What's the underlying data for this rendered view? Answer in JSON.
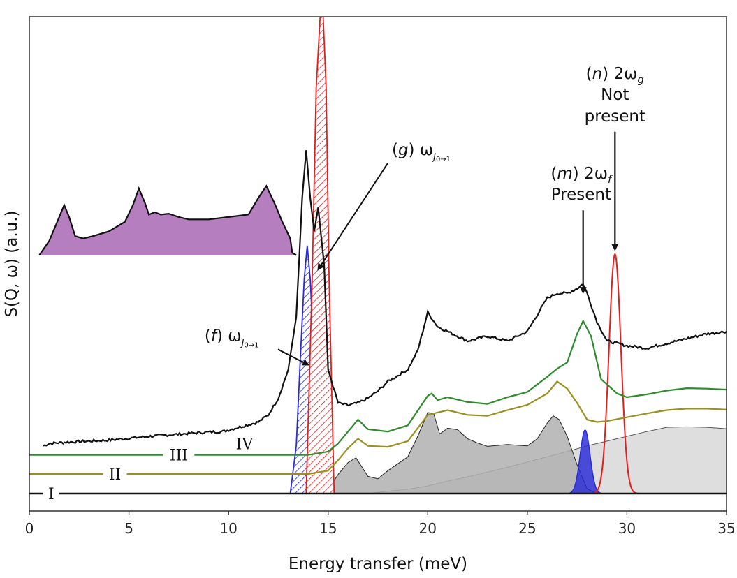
{
  "chart_data": {
    "type": "line",
    "xlabel": "Energy transfer (meV)",
    "ylabel": "S(Q, ω) (a.u.)",
    "xlim": [
      0,
      35
    ],
    "ylim": [
      0,
      100
    ],
    "xticks": [
      0,
      5,
      10,
      15,
      20,
      25,
      30,
      35
    ],
    "grid": false,
    "colors": {
      "black": "#111111",
      "green": "#2e8b2e",
      "olive": "#9a9020",
      "grey_dark": "#b0b0b0",
      "grey_light": "#dedede",
      "purple": "#b57fbf",
      "blue": "#2a2ad8",
      "red": "#e02020"
    },
    "series": [
      {
        "name": "IV",
        "label": "IV",
        "color": "#111111",
        "baseline": 10,
        "x": [
          0.7,
          1,
          2,
          3,
          4,
          5,
          6,
          7,
          8,
          9,
          9.7,
          11.5,
          12,
          12.5,
          13,
          13.4,
          13.7,
          13.9,
          14.1,
          14.3,
          14.5,
          14.8,
          15,
          15.5,
          16,
          16.5,
          17,
          17.5,
          18,
          19,
          19.5,
          20,
          20.5,
          21,
          22,
          23,
          24,
          25,
          26,
          26.5,
          27,
          27.5,
          27.8,
          28,
          28.5,
          29,
          30,
          31,
          32,
          33,
          34,
          35
        ],
        "y": [
          10,
          10.5,
          10.8,
          11,
          11.2,
          11.6,
          12,
          12.3,
          12.6,
          12.9,
          13,
          15,
          16.5,
          20,
          26,
          37,
          62,
          72,
          62,
          55,
          60,
          48,
          26,
          19,
          18.5,
          19,
          20,
          21.5,
          23.5,
          26,
          30,
          38,
          35,
          34,
          32,
          33,
          32,
          34,
          41,
          42,
          42,
          43,
          44,
          42,
          36,
          32,
          31,
          30.5,
          31.5,
          32.5,
          33.5,
          34
        ]
      },
      {
        "name": "III",
        "label": "III",
        "color": "#2e8b2e",
        "baseline": 8.1,
        "x": [
          0,
          14,
          15,
          15.5,
          16,
          16.5,
          17,
          18,
          19,
          20,
          20.2,
          20.5,
          21,
          22,
          23,
          24,
          25,
          26,
          26.5,
          27,
          27.5,
          27.8,
          28.2,
          28.7,
          29.5,
          30,
          31,
          32,
          33,
          34,
          35
        ],
        "y": [
          8.1,
          8.1,
          8.8,
          10.5,
          13,
          15.5,
          13.5,
          13,
          14.3,
          20.5,
          21,
          19.6,
          20.2,
          19.2,
          18.8,
          20.2,
          21.3,
          24.5,
          26.2,
          27.5,
          33.5,
          36.2,
          33,
          24,
          21,
          20.2,
          20.8,
          21.6,
          22.1,
          22,
          21.8
        ]
      },
      {
        "name": "II",
        "label": "II",
        "color": "#9a9020",
        "baseline": 4.1,
        "x": [
          0,
          14,
          15,
          15.5,
          16,
          16.5,
          17,
          18,
          19,
          20,
          20.5,
          21,
          22,
          23,
          24,
          25,
          26,
          26.5,
          27,
          27.5,
          28,
          28.5,
          29,
          30,
          31,
          32,
          33,
          34,
          35
        ],
        "y": [
          4.1,
          4.1,
          4.8,
          7,
          9.5,
          11.5,
          10,
          9.8,
          11,
          16.5,
          17,
          17.5,
          16.5,
          16.3,
          17.5,
          18.6,
          21,
          23.5,
          22,
          19,
          15.5,
          15,
          15.2,
          16,
          16.8,
          17.5,
          17.8,
          17.8,
          17.6
        ]
      },
      {
        "name": "I",
        "label": "I",
        "color": "#111111",
        "baseline": 0,
        "x": [
          0,
          35
        ],
        "y": [
          0,
          0
        ]
      },
      {
        "name": "grey-dark",
        "color": "#b0b0b0",
        "fill": true,
        "x": [
          14.7,
          15,
          15.5,
          16,
          16.4,
          17,
          17.5,
          18,
          19,
          19.5,
          20,
          20.3,
          20.6,
          21,
          21.5,
          22,
          22.5,
          23,
          24,
          25,
          25.5,
          26,
          26.3,
          26.6,
          27,
          27.5,
          28,
          28.5
        ],
        "y": [
          0,
          0.8,
          4,
          6.5,
          7.5,
          3.6,
          3.1,
          4.8,
          7.7,
          12,
          17,
          16.8,
          12.5,
          13.7,
          13.4,
          11.5,
          10.6,
          9.9,
          10.3,
          10,
          11.5,
          14.8,
          16.3,
          15.5,
          12,
          6,
          1,
          0
        ]
      },
      {
        "name": "grey-light",
        "color": "#dedede",
        "fill": true,
        "x": [
          17,
          18,
          19,
          20,
          21,
          22,
          23,
          24,
          25,
          26,
          27,
          28,
          29,
          30,
          31,
          32,
          33,
          34,
          35
        ],
        "y": [
          0,
          0.5,
          0.9,
          1.6,
          2.6,
          3.5,
          4.5,
          5.5,
          6.6,
          7.7,
          8.8,
          10,
          11,
          12,
          13,
          13.9,
          14,
          13.9,
          13.6
        ]
      },
      {
        "name": "purple-inset",
        "color": "#b57fbf",
        "fill": true,
        "x": [
          0.5,
          1,
          1.5,
          1.75,
          2,
          2.3,
          2.7,
          3.2,
          4,
          4.8,
          5.2,
          5.5,
          5.8,
          6,
          6.3,
          6.6,
          7,
          7.5,
          8,
          9,
          10,
          11,
          11.5,
          11.9,
          12.3,
          12.7,
          13.1,
          13.2,
          13.4
        ],
        "y": [
          50,
          53,
          58,
          60.5,
          58,
          54,
          53.5,
          54,
          55,
          57,
          60.5,
          64,
          61,
          58.5,
          59,
          58.5,
          58.7,
          58,
          57.5,
          57.5,
          58,
          58.5,
          62,
          64.5,
          61,
          57,
          53.5,
          50.5,
          50
        ]
      },
      {
        "name": "blue-hatched",
        "color": "#2a2ad8",
        "hatched": true,
        "x": [
          13.1,
          13.4,
          13.6,
          13.8,
          13.95,
          14.1,
          14.3,
          14.5,
          14.7
        ],
        "y": [
          0,
          10,
          28,
          45,
          52,
          45,
          28,
          8,
          0
        ]
      },
      {
        "name": "red-hatched",
        "color": "#e02020",
        "hatched": true,
        "x": [
          13.9,
          14.2,
          14.4,
          14.6,
          14.75,
          14.9,
          15.05,
          15.3
        ],
        "y": [
          0,
          45,
          85,
          100,
          100,
          85,
          45,
          0
        ]
      },
      {
        "name": "blue-2wf",
        "color": "#2a2ad8",
        "fill": true,
        "gaussian": [
          27.9,
          0.25,
          13.3
        ]
      },
      {
        "name": "red-2wg",
        "color": "#e02020",
        "gaussian": [
          29.4,
          0.3,
          50.2
        ]
      }
    ],
    "annotations": [
      {
        "id": "f",
        "prefix": "(",
        "letter": "f",
        "suffix": ") ω",
        "subscript": "J",
        "subsub": "0→1",
        "text_x": 8.8,
        "text_y": 32,
        "arrow_to_x": 14.0,
        "arrow_to_y": 27
      },
      {
        "id": "g",
        "prefix": "(",
        "letter": "g",
        "suffix": ") ω",
        "subscript": "J",
        "subsub": "0→1",
        "text_x": 18.2,
        "text_y": 71,
        "arrow_to_x": 14.5,
        "arrow_to_y": 47
      },
      {
        "id": "m",
        "line1_prefix": "(",
        "line1_letter": "m",
        "line1_suffix": ") 2ω",
        "line1_sub": "f",
        "line2": "Present",
        "text_x": 27.7,
        "text_y": 66,
        "arrow_to_x": 27.8,
        "arrow_to_y": 42
      },
      {
        "id": "n",
        "line1_prefix": "(",
        "line1_letter": "n",
        "line1_suffix": ") 2ω",
        "line1_sub": "g",
        "line2": "Not",
        "line3": "present",
        "text_x": 29.4,
        "text_y": 87,
        "arrow_to_x": 29.4,
        "arrow_to_y": 51
      }
    ]
  }
}
